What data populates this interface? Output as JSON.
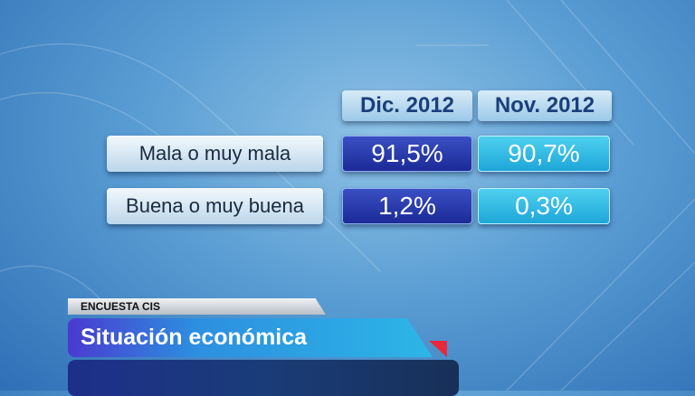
{
  "chart_data": {
    "type": "table",
    "columns": [
      "Dic. 2012",
      "Nov. 2012"
    ],
    "rows": [
      {
        "label": "Mala o muy mala",
        "values": [
          "91,5%",
          "90,7%"
        ]
      },
      {
        "label": "Buena o muy buena",
        "values": [
          "1,2%",
          "0,3%"
        ]
      }
    ],
    "colors": {
      "dic_column": "#1f2e9e",
      "nov_column": "#28b2e0"
    }
  },
  "lower_third": {
    "tag": "ENCUESTA CIS",
    "title": "Situación económica",
    "accent_color": "#e8283a"
  }
}
